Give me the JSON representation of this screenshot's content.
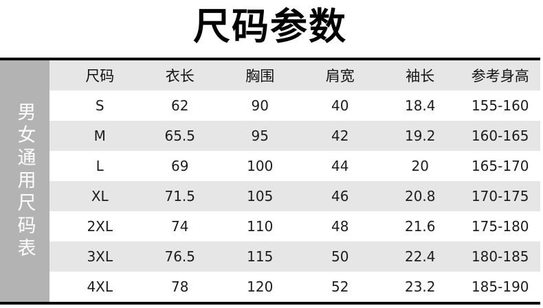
{
  "title": "尺码参数",
  "sidebar": {
    "label": "男女通用尺码表"
  },
  "chart_data": {
    "type": "table",
    "title": "尺码参数",
    "columns": [
      "尺码",
      "衣长",
      "胸围",
      "肩宽",
      "袖长",
      "参考身高"
    ],
    "rows": [
      [
        "S",
        "62",
        "90",
        "40",
        "18.4",
        "155-160"
      ],
      [
        "M",
        "65.5",
        "95",
        "42",
        "19.2",
        "160-165"
      ],
      [
        "L",
        "69",
        "100",
        "44",
        "20",
        "165-170"
      ],
      [
        "XL",
        "71.5",
        "105",
        "46",
        "20.8",
        "170-175"
      ],
      [
        "2XL",
        "74",
        "110",
        "48",
        "21.6",
        "175-180"
      ],
      [
        "3XL",
        "76.5",
        "115",
        "50",
        "22.4",
        "180-185"
      ],
      [
        "4XL",
        "78",
        "120",
        "52",
        "23.2",
        "185-190"
      ]
    ]
  },
  "colors": {
    "sidebar_bg": "#b3b3b3",
    "stripe_bg": "#e6e6e6",
    "divider": "#000000",
    "title_color": "#000000",
    "cell_color": "#1c1c1c",
    "sidebar_text": "#ffffff"
  }
}
